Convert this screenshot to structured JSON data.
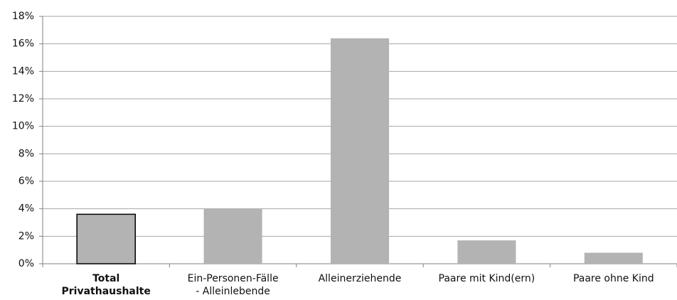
{
  "chart_data": {
    "type": "bar",
    "categories": [
      "Total\nPrivathaushalte",
      "Ein-Personen-Fälle\n- Alleinlebende",
      "Alleinerziehende",
      "Paare mit Kind(ern)",
      "Paare ohne Kind"
    ],
    "values": [
      3.6,
      4.0,
      16.4,
      1.7,
      0.8
    ],
    "color": "#b3b3b3",
    "highlight": 0,
    "ylim": [
      0,
      18
    ],
    "yticks": [
      {
        "value": 0,
        "label": "0%"
      },
      {
        "value": 2,
        "label": "2%"
      },
      {
        "value": 4,
        "label": "4%"
      },
      {
        "value": 6,
        "label": "6%"
      },
      {
        "value": 8,
        "label": "8%"
      },
      {
        "value": 10,
        "label": "10%"
      },
      {
        "value": 12,
        "label": "12%"
      },
      {
        "value": 14,
        "label": "14%"
      },
      {
        "value": 16,
        "label": "16%"
      },
      {
        "value": 18,
        "label": "18%"
      }
    ],
    "grid": true
  }
}
